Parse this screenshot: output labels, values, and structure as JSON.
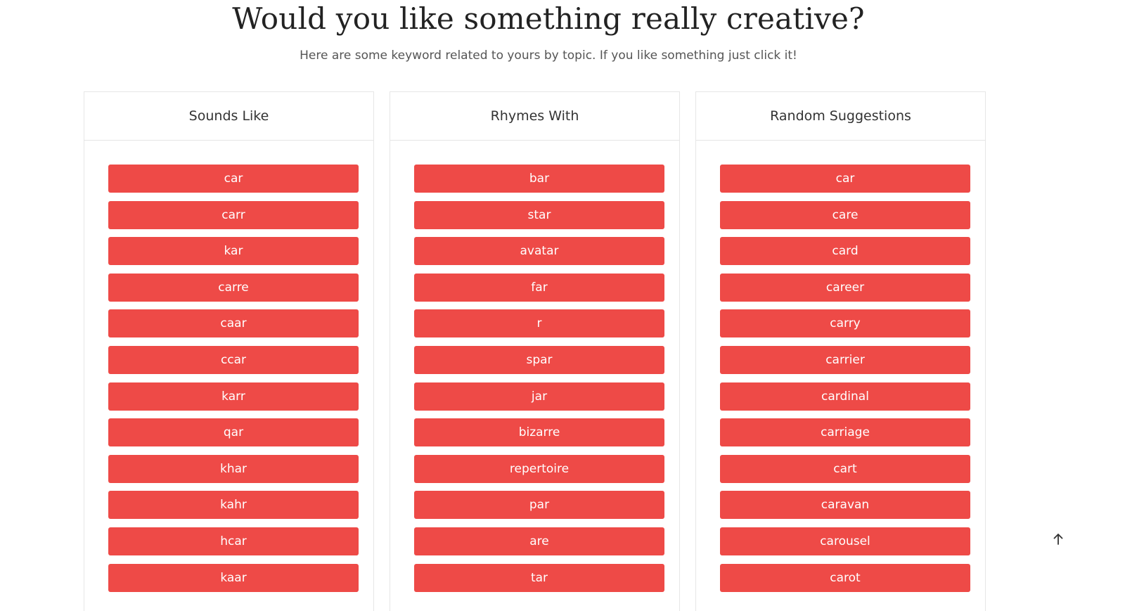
{
  "hero": {
    "title": "Would you like something really creative?",
    "subtitle": "Here are some keyword related to yours by topic. If you like something just click it!"
  },
  "panels": [
    {
      "title": "Sounds Like",
      "keywords": [
        "car",
        "carr",
        "kar",
        "carre",
        "caar",
        "ccar",
        "karr",
        "qar",
        "khar",
        "kahr",
        "hcar",
        "kaar"
      ]
    },
    {
      "title": "Rhymes With",
      "keywords": [
        "bar",
        "star",
        "avatar",
        "far",
        "r",
        "spar",
        "jar",
        "bizarre",
        "repertoire",
        "par",
        "are",
        "tar"
      ]
    },
    {
      "title": "Random Suggestions",
      "keywords": [
        "car",
        "care",
        "card",
        "career",
        "carry",
        "carrier",
        "cardinal",
        "carriage",
        "cart",
        "caravan",
        "carousel",
        "carot"
      ]
    }
  ],
  "colors": {
    "button_bg": "#ee4a47",
    "button_text": "#ffffff",
    "panel_border": "#e6e6e6"
  },
  "icons": {
    "back_to_top": "arrow-up-icon"
  }
}
